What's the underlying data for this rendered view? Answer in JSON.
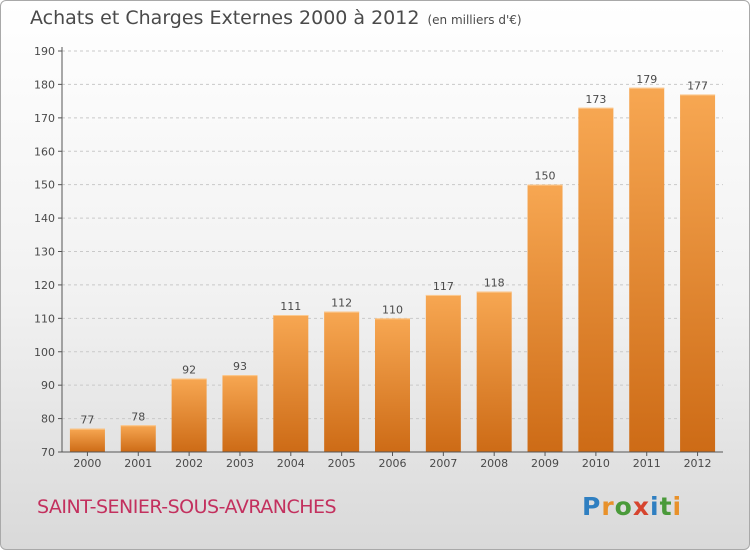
{
  "header": {
    "title": "Achats et Charges Externes 2000 à 2012",
    "unit": "(en milliers d'€)"
  },
  "footer": {
    "commune": "SAINT-SENIER-SOUS-AVRANCHES"
  },
  "logo": {
    "text": "Proxiti",
    "letters": [
      "P",
      "r",
      "o",
      "x",
      "i",
      "t",
      "i"
    ],
    "colors": [
      "#2f7fc1",
      "#e8912a",
      "#4a9a3a",
      "#d6452f",
      "#2f7fc1",
      "#4a9a3a",
      "#e8912a"
    ]
  },
  "colors": {
    "bar_top": "#f7a752",
    "bar_bottom": "#cd6b16",
    "axis": "#555555",
    "grid": "#c9c9c9",
    "commune": "#c3305e"
  },
  "chart_data": {
    "type": "bar",
    "title": "Achats et Charges Externes 2000 à 2012",
    "subtitle": "(en milliers d'€)",
    "xlabel": "",
    "ylabel": "",
    "categories": [
      "2000",
      "2001",
      "2002",
      "2003",
      "2004",
      "2005",
      "2006",
      "2007",
      "2008",
      "2009",
      "2010",
      "2011",
      "2012"
    ],
    "values": [
      77,
      78,
      92,
      93,
      111,
      112,
      110,
      117,
      118,
      150,
      173,
      179,
      177
    ],
    "ylim": [
      70,
      190
    ],
    "yticks": [
      70,
      80,
      90,
      100,
      110,
      120,
      130,
      140,
      150,
      160,
      170,
      180,
      190
    ],
    "grid": true,
    "legend": "none"
  }
}
